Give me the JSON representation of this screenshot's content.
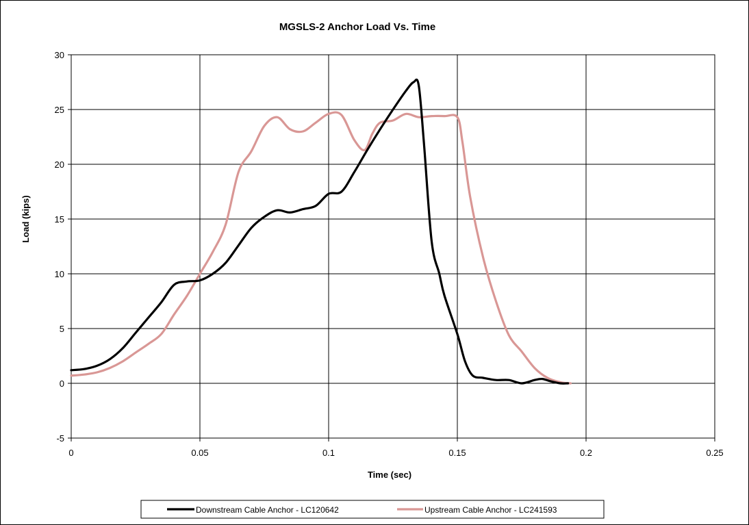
{
  "chart_data": {
    "type": "line",
    "title": "MGSLS-2 Anchor Load Vs. Time",
    "xlabel": "Time (sec)",
    "ylabel": "Load (kips)",
    "xlim": [
      0,
      0.25
    ],
    "ylim": [
      -5,
      30
    ],
    "x_ticks": [
      "0",
      "0.05",
      "0.1",
      "0.15",
      "0.2",
      "0.25"
    ],
    "y_ticks": [
      "-5",
      "0",
      "5",
      "10",
      "15",
      "20",
      "25",
      "30"
    ],
    "grid": true,
    "legend_position": "bottom",
    "colors": {
      "downstream": "#000000",
      "upstream": "#d99795"
    },
    "series": [
      {
        "name": "Downstream Cable Anchor - LC120642",
        "color": "#000000",
        "x": [
          0,
          0.005,
          0.01,
          0.015,
          0.02,
          0.025,
          0.03,
          0.035,
          0.04,
          0.045,
          0.05,
          0.055,
          0.06,
          0.065,
          0.07,
          0.075,
          0.08,
          0.085,
          0.09,
          0.095,
          0.1,
          0.105,
          0.11,
          0.115,
          0.12,
          0.125,
          0.13,
          0.133,
          0.135,
          0.137,
          0.14,
          0.143,
          0.145,
          0.15,
          0.153,
          0.156,
          0.16,
          0.165,
          0.17,
          0.175,
          0.18,
          0.183,
          0.186,
          0.19,
          0.193
        ],
        "values": [
          1.2,
          1.3,
          1.6,
          2.2,
          3.2,
          4.6,
          6.0,
          7.4,
          9.0,
          9.3,
          9.4,
          10.0,
          11.0,
          12.6,
          14.2,
          15.2,
          15.8,
          15.6,
          15.9,
          16.2,
          17.3,
          17.5,
          19.3,
          21.3,
          23.2,
          25.0,
          26.7,
          27.5,
          27.2,
          22.0,
          13.0,
          10.0,
          8.0,
          4.5,
          2.0,
          0.7,
          0.5,
          0.3,
          0.3,
          0.0,
          0.3,
          0.4,
          0.2,
          0.0,
          0.0
        ]
      },
      {
        "name": "Upstream Cable Anchor - LC241593",
        "color": "#d99795",
        "x": [
          0,
          0.005,
          0.01,
          0.015,
          0.02,
          0.025,
          0.03,
          0.035,
          0.04,
          0.045,
          0.05,
          0.055,
          0.06,
          0.065,
          0.07,
          0.075,
          0.08,
          0.085,
          0.09,
          0.095,
          0.1,
          0.105,
          0.11,
          0.114,
          0.117,
          0.12,
          0.125,
          0.13,
          0.135,
          0.14,
          0.145,
          0.15,
          0.152,
          0.155,
          0.16,
          0.165,
          0.17,
          0.175,
          0.18,
          0.185,
          0.19,
          0.194
        ],
        "values": [
          0.7,
          0.8,
          1.0,
          1.4,
          2.0,
          2.8,
          3.6,
          4.5,
          6.3,
          8.0,
          10.0,
          12.0,
          14.5,
          19.3,
          21.2,
          23.5,
          24.3,
          23.2,
          23.0,
          23.8,
          24.6,
          24.5,
          22.2,
          21.3,
          22.8,
          23.8,
          24.0,
          24.6,
          24.3,
          24.4,
          24.4,
          24.3,
          22.0,
          17.0,
          11.5,
          7.5,
          4.4,
          2.9,
          1.4,
          0.5,
          0.1,
          0.0
        ]
      }
    ]
  }
}
